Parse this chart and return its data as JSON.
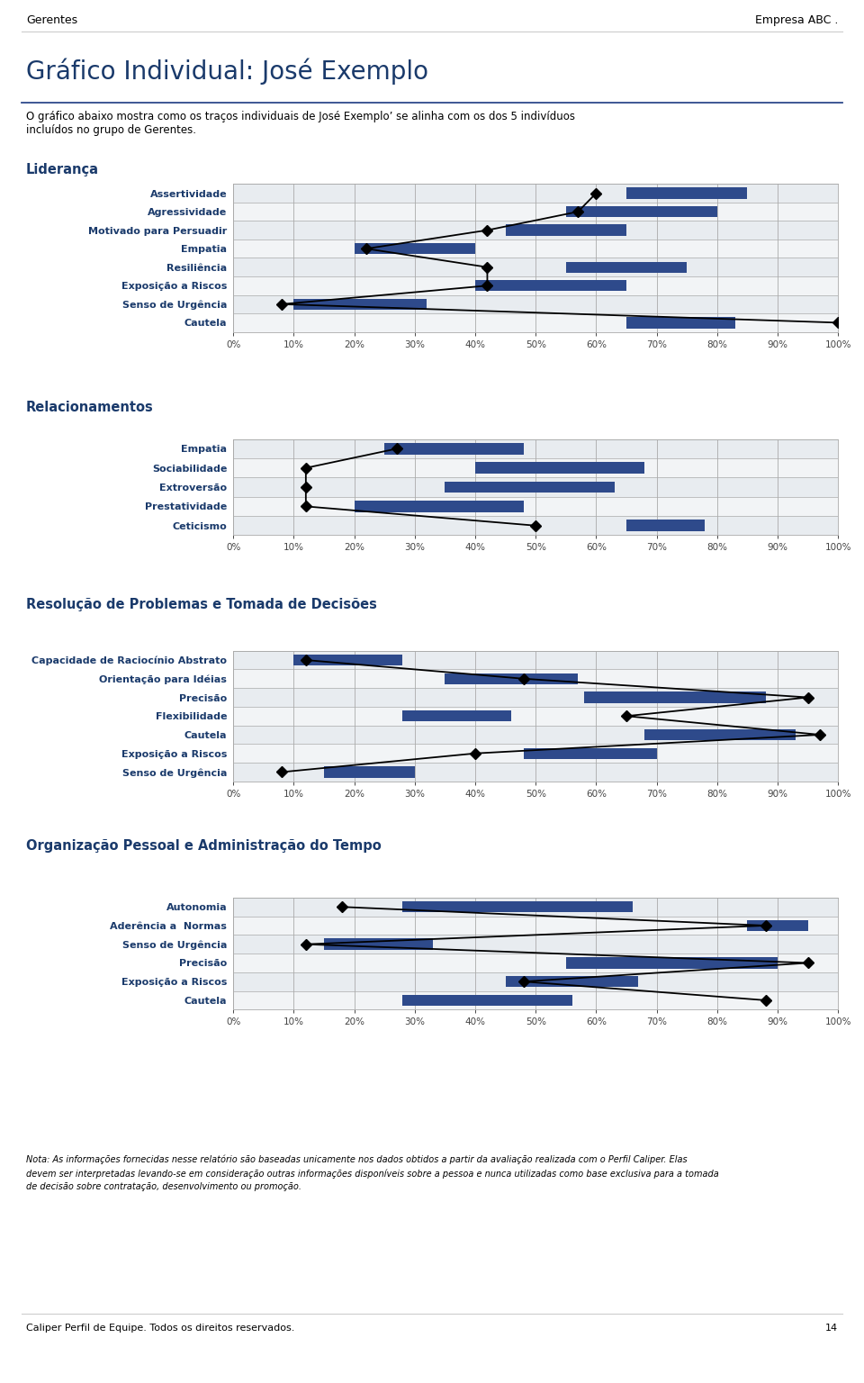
{
  "header_left": "Gerentes",
  "header_right": "Empresa ABC .",
  "main_title": "Gráfico Individual: José Exemplo",
  "subtitle_line1": "O gráfico abaixo mostra como os traços individuais de José Exemplo’ se alinha com os dos 5 indivíduos",
  "subtitle_line2": "incluídos no grupo de Gerentes.",
  "footer_note": "Nota: As informações fornecidas nesse relatório são baseadas unicamente nos dados obtidos a partir da avaliação realizada com o Perfil Caliper. Elas\ndevem ser interpretadas levando-se em consideração outras informações disponíveis sobre a pessoa e nunca utilizadas como base exclusiva para a tomada\nde decisão sobre contratação, desenvolvimento ou promoção.",
  "footer_bottom_left": "Caliper Perfil de Equipe. Todos os direitos reservados.",
  "footer_bottom_right": "14",
  "sections": [
    {
      "title": "Liderança",
      "labels": [
        "Assertividade",
        "Agressividade",
        "Motivado para Persuadir",
        "Empatia",
        "Resiliência",
        "Exposição a Riscos",
        "Senso de Urgência",
        "Cautela"
      ],
      "bar_starts": [
        65,
        55,
        45,
        20,
        55,
        40,
        10,
        65
      ],
      "bar_widths": [
        20,
        25,
        20,
        20,
        20,
        25,
        22,
        18
      ],
      "diamond_positions": [
        60,
        57,
        42,
        22,
        42,
        42,
        8,
        100
      ]
    },
    {
      "title": "Relacionamentos",
      "labels": [
        "Empatia",
        "Sociabilidade",
        "Extroversão",
        "Prestatividade",
        "Ceticismo"
      ],
      "bar_starts": [
        25,
        40,
        35,
        20,
        65
      ],
      "bar_widths": [
        23,
        28,
        28,
        28,
        13
      ],
      "diamond_positions": [
        27,
        12,
        12,
        12,
        50
      ]
    },
    {
      "title": "Resolução de Problemas e Tomada de Decisões",
      "labels": [
        "Capacidade de Raciocínio Abstrato",
        "Orientação para Idéias",
        "Precisão",
        "Flexibilidade",
        "Cautela",
        "Exposição a Riscos",
        "Senso de Urgência"
      ],
      "bar_starts": [
        10,
        35,
        58,
        28,
        68,
        48,
        15
      ],
      "bar_widths": [
        18,
        22,
        30,
        18,
        25,
        22,
        15
      ],
      "diamond_positions": [
        12,
        48,
        95,
        65,
        97,
        40,
        8
      ]
    },
    {
      "title": "Organização Pessoal e Administração do Tempo",
      "labels": [
        "Autonomia",
        "Aderência a  Normas",
        "Senso de Urgência",
        "Precisão",
        "Exposição a Riscos",
        "Cautela"
      ],
      "bar_starts": [
        28,
        85,
        15,
        55,
        45,
        28
      ],
      "bar_widths": [
        38,
        10,
        18,
        35,
        22,
        28
      ],
      "diamond_positions": [
        18,
        88,
        12,
        95,
        48,
        88
      ]
    }
  ],
  "bar_color": "#2E4A8B",
  "diamond_color": "#000000",
  "line_color": "#000000",
  "row_color_odd": "#E8ECF0",
  "row_color_even": "#F2F4F6",
  "section_title_color": "#1A3A6B",
  "label_color": "#1A3A6B",
  "bg_color": "#FFFFFF",
  "title_color": "#1A3A6B"
}
